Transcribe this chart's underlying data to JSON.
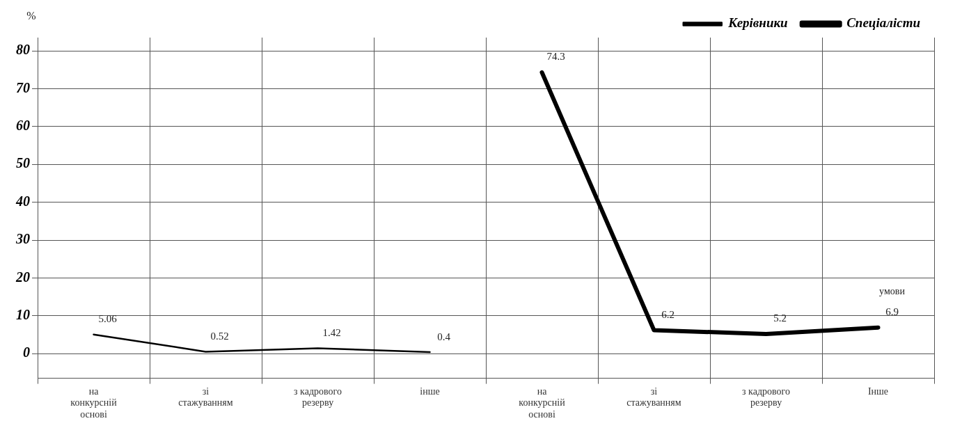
{
  "chart_data": {
    "type": "line",
    "ylabel": "%",
    "categories": [
      "на конкурсній основі",
      "зі стажуванням",
      "з кадрового резерву",
      "інше",
      "на конкурсній основі",
      "зі стажуванням",
      "з кадрового резерву",
      "Інше"
    ],
    "series": [
      {
        "name": "Керівники",
        "color": "#000000",
        "values": [
          5.06,
          0.52,
          1.42,
          0.4,
          null,
          null,
          null,
          null
        ]
      },
      {
        "name": "Спеціалісти",
        "color": "#000000",
        "values": [
          null,
          null,
          null,
          null,
          74.3,
          6.2,
          5.2,
          6.9
        ]
      }
    ],
    "ylim": [
      -6.5,
      83.5
    ],
    "yticks": [
      0,
      10,
      20,
      30,
      40,
      50,
      60,
      70,
      80
    ],
    "grid": true,
    "legend": "top right",
    "marker": "none",
    "data_labels": true,
    "annotations": [
      "умови"
    ]
  }
}
